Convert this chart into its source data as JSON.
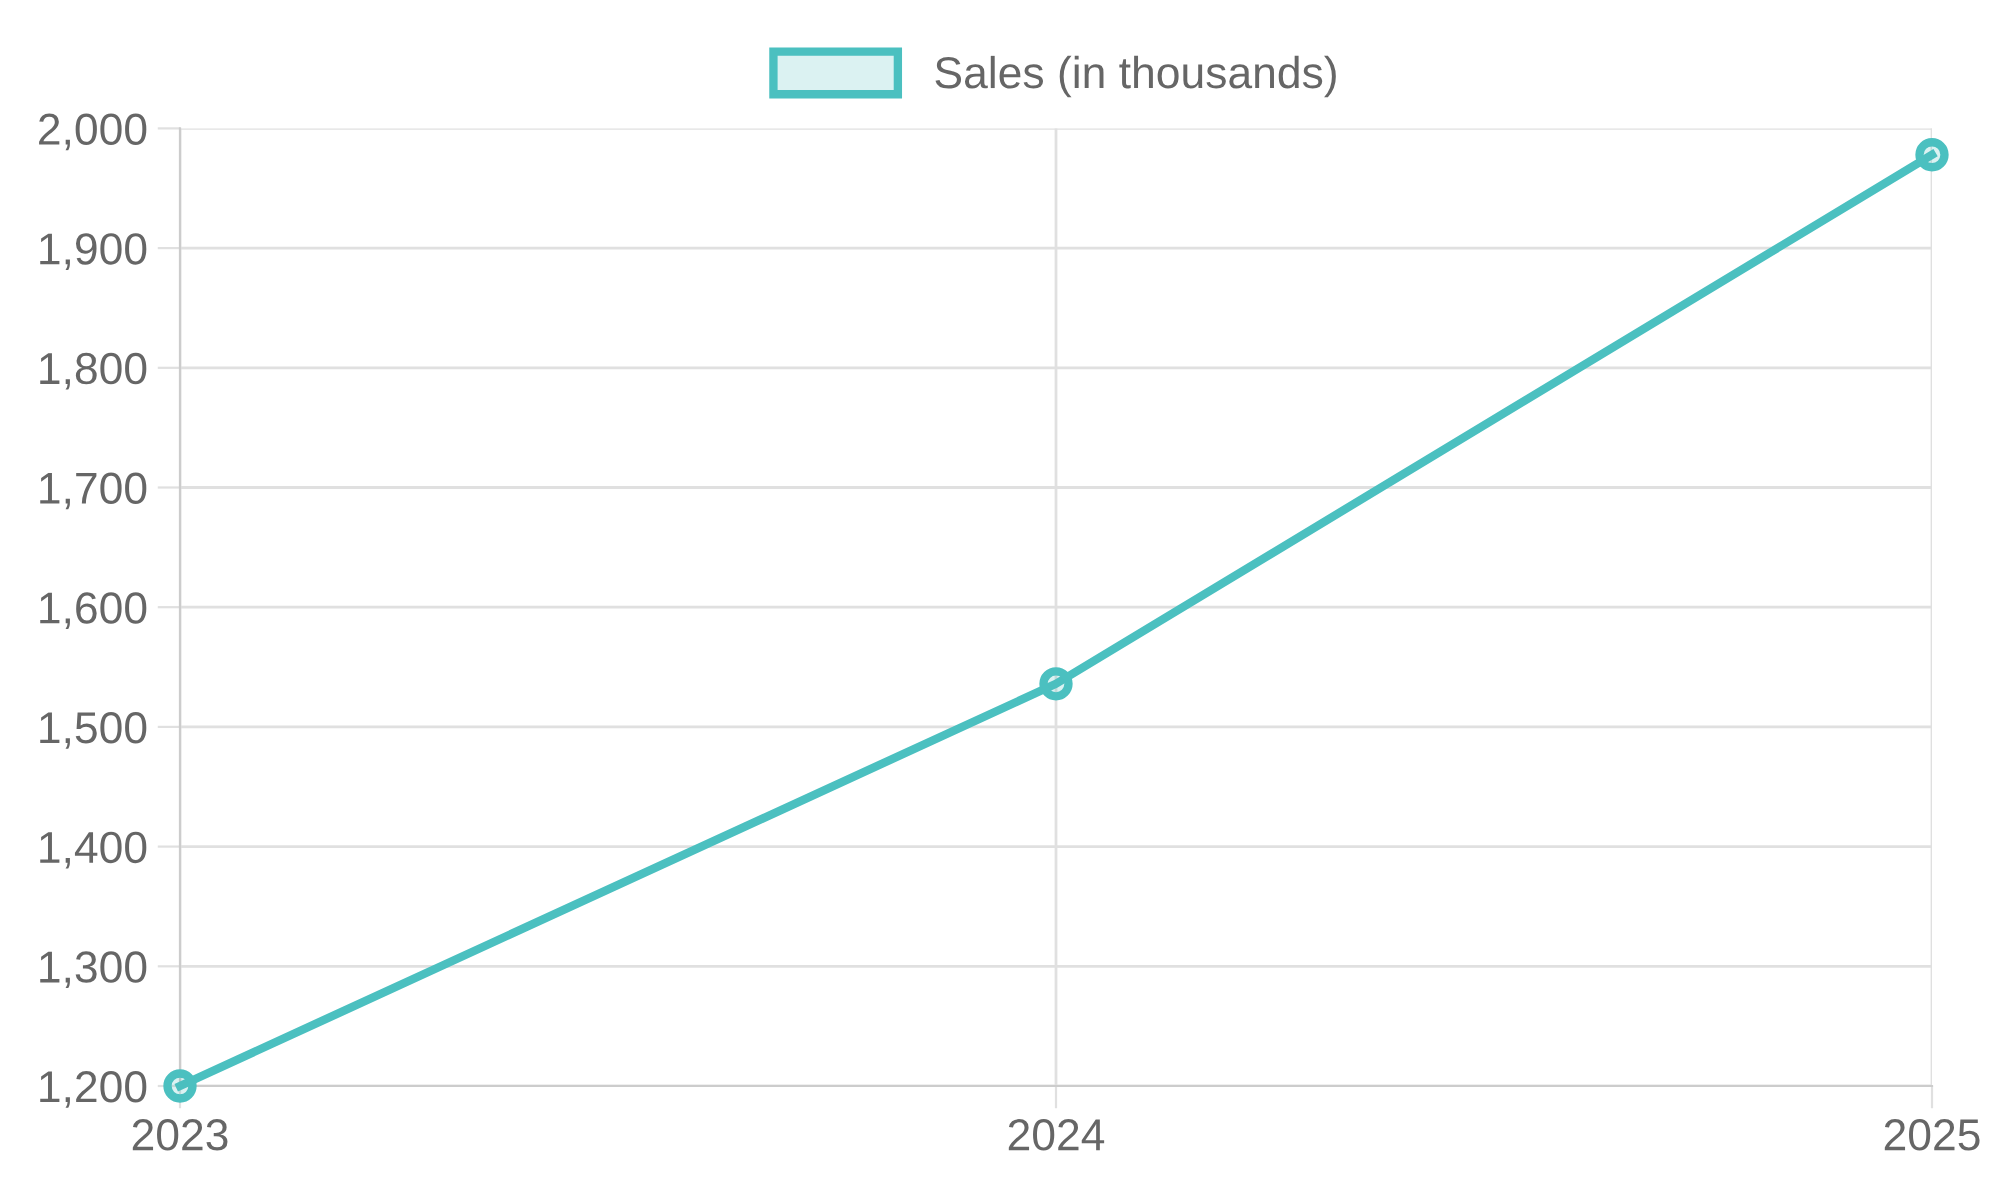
{
  "chart_data": {
    "type": "line",
    "categories": [
      "2023",
      "2024",
      "2025"
    ],
    "series": [
      {
        "name": "Sales (in thousands)",
        "color": "#4bc0c0",
        "values": [
          1200,
          1536,
          1978
        ]
      }
    ],
    "ylim": [
      1200,
      2000
    ],
    "yticks": [
      {
        "value": 1200,
        "label": "1,200"
      },
      {
        "value": 1300,
        "label": "1,300"
      },
      {
        "value": 1400,
        "label": "1,400"
      },
      {
        "value": 1500,
        "label": "1,500"
      },
      {
        "value": 1600,
        "label": "1,600"
      },
      {
        "value": 1700,
        "label": "1,700"
      },
      {
        "value": 1800,
        "label": "1,800"
      },
      {
        "value": 1900,
        "label": "1,900"
      },
      {
        "value": 2000,
        "label": "2,000"
      }
    ],
    "grid": true,
    "legend": "top",
    "marker": "circle",
    "line_style": "solid"
  }
}
